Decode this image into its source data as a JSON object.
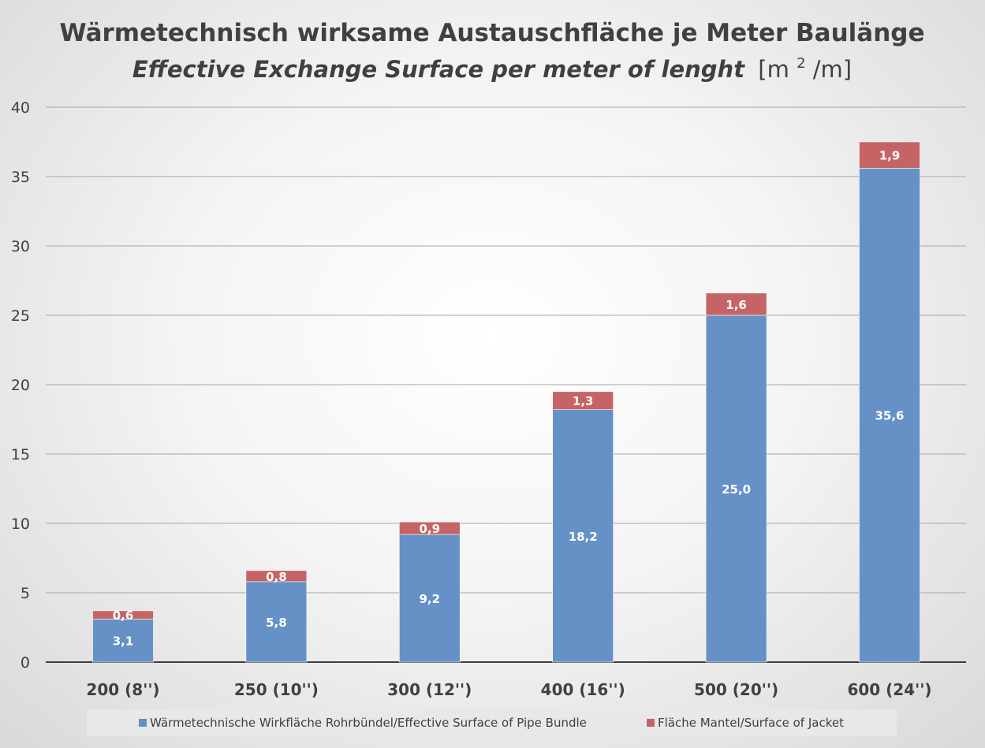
{
  "chart_data": {
    "type": "bar",
    "stacked": true,
    "title": "Wärmetechnisch wirksame Austauschfläche je Meter Baulänge",
    "subtitle_italic": "Effective Exchange Surface per meter of lenght",
    "subtitle_unit_prefix": "[m",
    "subtitle_unit_sup": "2",
    "subtitle_unit_suffix": "/m]",
    "categories": [
      "200 (8'')",
      "250 (10'')",
      "300 (12'')",
      "400 (16'')",
      "500 (20'')",
      "600 (24'')"
    ],
    "series": [
      {
        "name": "Wärmetechnische Wirkfläche Rohrbündel/Effective Surface of Pipe Bundle",
        "values": [
          3.1,
          5.8,
          9.2,
          18.2,
          25.0,
          35.6
        ],
        "labels": [
          "3,1",
          "5,8",
          "9,2",
          "18,2",
          "25,0",
          "35,6"
        ],
        "color": "#6591c6"
      },
      {
        "name": "Fläche Mantel/Surface of  Jacket",
        "values": [
          0.6,
          0.8,
          0.9,
          1.3,
          1.6,
          1.9
        ],
        "labels": [
          "0,6",
          "0,8",
          "0,9",
          "1,3",
          "1,6",
          "1,9"
        ],
        "color": "#c66465"
      }
    ],
    "ylim": [
      0,
      40
    ],
    "yticks": [
      0,
      5,
      10,
      15,
      20,
      25,
      30,
      35,
      40
    ],
    "grid": true,
    "legend_position": "bottom"
  }
}
